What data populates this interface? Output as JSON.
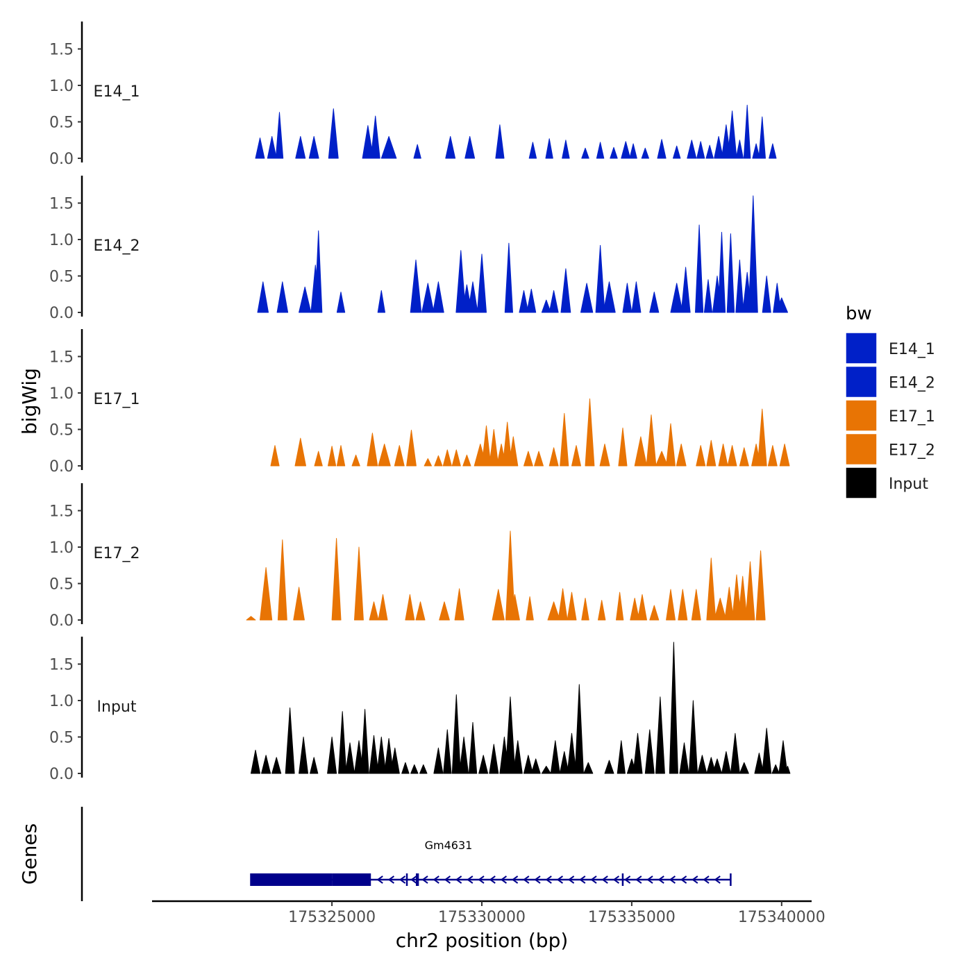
{
  "chart_data": {
    "type": "area",
    "y_axis_title": "bigWig",
    "x_axis_title": "chr2 position (bp)",
    "xlim": [
      175319000,
      175341000
    ],
    "ylim": [
      0,
      1.85
    ],
    "y_ticks": [
      0.0,
      0.5,
      1.0,
      1.5
    ],
    "y_tick_labels": [
      "0.0",
      "0.5",
      "1.0",
      "1.5"
    ],
    "x_ticks": [
      175325000,
      175330000,
      175335000,
      175340000
    ],
    "x_tick_labels": [
      "175325000",
      "175330000",
      "175335000",
      "175340000"
    ],
    "legend_title": "bw",
    "legend": [
      {
        "label": "E14_1",
        "color": "#0020c8"
      },
      {
        "label": "E14_2",
        "color": "#0020c8"
      },
      {
        "label": "E17_1",
        "color": "#e87404"
      },
      {
        "label": "E17_2",
        "color": "#e87404"
      },
      {
        "label": "Input",
        "color": "#000000"
      }
    ],
    "series": [
      {
        "name": "E14_1",
        "color": "#0020c8",
        "peaks": [
          [
            175322600,
            0.28,
            150
          ],
          [
            175323000,
            0.3,
            150
          ],
          [
            175323250,
            0.63,
            120
          ],
          [
            175323950,
            0.3,
            160
          ],
          [
            175324400,
            0.3,
            160
          ],
          [
            175325050,
            0.68,
            160
          ],
          [
            175326200,
            0.45,
            180
          ],
          [
            175326450,
            0.58,
            150
          ],
          [
            175326900,
            0.3,
            250
          ],
          [
            175327850,
            0.19,
            120
          ],
          [
            175328950,
            0.3,
            160
          ],
          [
            175329600,
            0.3,
            160
          ],
          [
            175330600,
            0.46,
            140
          ],
          [
            175331700,
            0.22,
            120
          ],
          [
            175332250,
            0.27,
            120
          ],
          [
            175332800,
            0.25,
            120
          ],
          [
            175333450,
            0.14,
            120
          ],
          [
            175333950,
            0.22,
            120
          ],
          [
            175334400,
            0.15,
            120
          ],
          [
            175334800,
            0.23,
            150
          ],
          [
            175335050,
            0.2,
            120
          ],
          [
            175335450,
            0.14,
            120
          ],
          [
            175336000,
            0.26,
            140
          ],
          [
            175336500,
            0.17,
            120
          ],
          [
            175337000,
            0.25,
            150
          ],
          [
            175337300,
            0.23,
            130
          ],
          [
            175337600,
            0.18,
            120
          ],
          [
            175337900,
            0.3,
            150
          ],
          [
            175338150,
            0.46,
            150
          ],
          [
            175338350,
            0.65,
            150
          ],
          [
            175338600,
            0.25,
            120
          ],
          [
            175338850,
            0.73,
            110
          ],
          [
            175339150,
            0.2,
            120
          ],
          [
            175339350,
            0.57,
            110
          ],
          [
            175339700,
            0.2,
            120
          ]
        ]
      },
      {
        "name": "E14_2",
        "color": "#0020c8",
        "peaks": [
          [
            175322700,
            0.42,
            180
          ],
          [
            175323350,
            0.42,
            180
          ],
          [
            175324100,
            0.35,
            200
          ],
          [
            175324450,
            0.65,
            150
          ],
          [
            175324550,
            1.12,
            120
          ],
          [
            175325300,
            0.28,
            130
          ],
          [
            175326650,
            0.3,
            120
          ],
          [
            175327800,
            0.72,
            180
          ],
          [
            175328200,
            0.4,
            200
          ],
          [
            175328550,
            0.42,
            180
          ],
          [
            175329300,
            0.85,
            160
          ],
          [
            175329500,
            0.38,
            160
          ],
          [
            175329700,
            0.42,
            160
          ],
          [
            175330000,
            0.8,
            150
          ],
          [
            175330900,
            0.95,
            130
          ],
          [
            175331400,
            0.3,
            150
          ],
          [
            175331650,
            0.32,
            150
          ],
          [
            175332150,
            0.17,
            150
          ],
          [
            175332400,
            0.3,
            150
          ],
          [
            175332800,
            0.6,
            160
          ],
          [
            175333500,
            0.4,
            200
          ],
          [
            175333950,
            0.92,
            150
          ],
          [
            175334250,
            0.42,
            200
          ],
          [
            175334850,
            0.4,
            150
          ],
          [
            175335150,
            0.42,
            150
          ],
          [
            175335750,
            0.28,
            150
          ],
          [
            175336500,
            0.4,
            200
          ],
          [
            175336800,
            0.62,
            150
          ],
          [
            175337250,
            1.2,
            130
          ],
          [
            175337550,
            0.45,
            130
          ],
          [
            175337850,
            0.5,
            150
          ],
          [
            175338000,
            1.1,
            120
          ],
          [
            175338300,
            1.08,
            120
          ],
          [
            175338600,
            0.72,
            130
          ],
          [
            175338850,
            0.55,
            150
          ],
          [
            175339050,
            1.6,
            150
          ],
          [
            175339500,
            0.5,
            140
          ],
          [
            175339850,
            0.4,
            130
          ],
          [
            175340000,
            0.2,
            200
          ]
        ]
      },
      {
        "name": "E17_1",
        "color": "#e87404",
        "peaks": [
          [
            175323100,
            0.28,
            140
          ],
          [
            175323950,
            0.38,
            180
          ],
          [
            175324550,
            0.2,
            130
          ],
          [
            175325000,
            0.27,
            130
          ],
          [
            175325300,
            0.28,
            130
          ],
          [
            175325800,
            0.15,
            130
          ],
          [
            175326350,
            0.45,
            170
          ],
          [
            175326750,
            0.3,
            200
          ],
          [
            175327250,
            0.28,
            160
          ],
          [
            175327650,
            0.49,
            160
          ],
          [
            175328200,
            0.1,
            120
          ],
          [
            175328550,
            0.14,
            130
          ],
          [
            175328850,
            0.22,
            140
          ],
          [
            175329150,
            0.22,
            140
          ],
          [
            175329500,
            0.15,
            130
          ],
          [
            175329950,
            0.3,
            200
          ],
          [
            175330150,
            0.55,
            150
          ],
          [
            175330400,
            0.5,
            150
          ],
          [
            175330650,
            0.3,
            150
          ],
          [
            175330850,
            0.6,
            150
          ],
          [
            175331050,
            0.4,
            150
          ],
          [
            175331550,
            0.2,
            150
          ],
          [
            175331900,
            0.2,
            150
          ],
          [
            175332400,
            0.25,
            150
          ],
          [
            175332750,
            0.72,
            140
          ],
          [
            175333150,
            0.28,
            150
          ],
          [
            175333600,
            0.92,
            150
          ],
          [
            175334100,
            0.3,
            160
          ],
          [
            175334700,
            0.52,
            140
          ],
          [
            175335300,
            0.4,
            200
          ],
          [
            175335650,
            0.7,
            160
          ],
          [
            175336000,
            0.2,
            200
          ],
          [
            175336300,
            0.58,
            150
          ],
          [
            175336650,
            0.3,
            160
          ],
          [
            175337300,
            0.28,
            150
          ],
          [
            175337650,
            0.35,
            150
          ],
          [
            175338050,
            0.3,
            150
          ],
          [
            175338350,
            0.28,
            150
          ],
          [
            175338750,
            0.25,
            150
          ],
          [
            175339150,
            0.3,
            150
          ],
          [
            175339350,
            0.78,
            150
          ],
          [
            175339700,
            0.28,
            150
          ],
          [
            175340100,
            0.3,
            160
          ]
        ]
      },
      {
        "name": "E17_2",
        "color": "#e87404",
        "peaks": [
          [
            175322300,
            0.05,
            150
          ],
          [
            175322800,
            0.72,
            200
          ],
          [
            175323350,
            1.1,
            150
          ],
          [
            175323900,
            0.45,
            180
          ],
          [
            175325150,
            1.12,
            150
          ],
          [
            175325900,
            1.0,
            150
          ],
          [
            175326400,
            0.25,
            150
          ],
          [
            175326700,
            0.35,
            150
          ],
          [
            175327600,
            0.35,
            150
          ],
          [
            175327950,
            0.25,
            150
          ],
          [
            175328750,
            0.25,
            170
          ],
          [
            175329250,
            0.43,
            150
          ],
          [
            175330550,
            0.42,
            200
          ],
          [
            175330950,
            1.22,
            150
          ],
          [
            175331100,
            0.35,
            160
          ],
          [
            175331600,
            0.32,
            120
          ],
          [
            175332400,
            0.25,
            200
          ],
          [
            175332700,
            0.43,
            150
          ],
          [
            175333000,
            0.38,
            150
          ],
          [
            175333450,
            0.3,
            120
          ],
          [
            175334000,
            0.27,
            120
          ],
          [
            175334600,
            0.38,
            120
          ],
          [
            175335100,
            0.3,
            150
          ],
          [
            175335350,
            0.35,
            150
          ],
          [
            175335750,
            0.2,
            150
          ],
          [
            175336300,
            0.42,
            150
          ],
          [
            175336700,
            0.42,
            150
          ],
          [
            175337150,
            0.42,
            150
          ],
          [
            175337650,
            0.85,
            150
          ],
          [
            175337950,
            0.3,
            200
          ],
          [
            175338250,
            0.45,
            150
          ],
          [
            175338500,
            0.62,
            150
          ],
          [
            175338700,
            0.6,
            150
          ],
          [
            175338950,
            0.8,
            150
          ],
          [
            175339300,
            0.95,
            150
          ]
        ]
      },
      {
        "name": "Input",
        "color": "#000000",
        "peaks": [
          [
            175322450,
            0.32,
            150
          ],
          [
            175322800,
            0.25,
            150
          ],
          [
            175323150,
            0.22,
            150
          ],
          [
            175323600,
            0.9,
            150
          ],
          [
            175324050,
            0.5,
            150
          ],
          [
            175324400,
            0.22,
            130
          ],
          [
            175325000,
            0.5,
            150
          ],
          [
            175325350,
            0.85,
            130
          ],
          [
            175325600,
            0.42,
            150
          ],
          [
            175325900,
            0.45,
            150
          ],
          [
            175326100,
            0.88,
            130
          ],
          [
            175326400,
            0.52,
            150
          ],
          [
            175326650,
            0.5,
            150
          ],
          [
            175326900,
            0.48,
            150
          ],
          [
            175327100,
            0.35,
            150
          ],
          [
            175327450,
            0.15,
            120
          ],
          [
            175327750,
            0.12,
            120
          ],
          [
            175328050,
            0.12,
            120
          ],
          [
            175328550,
            0.35,
            150
          ],
          [
            175328850,
            0.6,
            130
          ],
          [
            175329150,
            1.08,
            140
          ],
          [
            175329400,
            0.5,
            150
          ],
          [
            175329700,
            0.7,
            130
          ],
          [
            175330050,
            0.25,
            150
          ],
          [
            175330400,
            0.4,
            150
          ],
          [
            175330750,
            0.5,
            150
          ],
          [
            175330950,
            1.05,
            160
          ],
          [
            175331200,
            0.45,
            150
          ],
          [
            175331550,
            0.25,
            150
          ],
          [
            175331800,
            0.2,
            150
          ],
          [
            175332150,
            0.1,
            150
          ],
          [
            175332450,
            0.45,
            150
          ],
          [
            175332750,
            0.3,
            150
          ],
          [
            175333000,
            0.55,
            150
          ],
          [
            175333250,
            1.22,
            140
          ],
          [
            175333550,
            0.15,
            150
          ],
          [
            175334250,
            0.18,
            150
          ],
          [
            175334650,
            0.45,
            130
          ],
          [
            175335000,
            0.2,
            150
          ],
          [
            175335200,
            0.55,
            150
          ],
          [
            175335600,
            0.6,
            150
          ],
          [
            175335950,
            1.05,
            150
          ],
          [
            175336400,
            1.8,
            140
          ],
          [
            175336750,
            0.42,
            150
          ],
          [
            175337050,
            1.0,
            140
          ],
          [
            175337350,
            0.25,
            150
          ],
          [
            175337650,
            0.22,
            150
          ],
          [
            175337850,
            0.2,
            150
          ],
          [
            175338150,
            0.3,
            150
          ],
          [
            175338450,
            0.55,
            150
          ],
          [
            175338750,
            0.15,
            150
          ],
          [
            175339250,
            0.28,
            150
          ],
          [
            175339500,
            0.62,
            150
          ],
          [
            175339800,
            0.12,
            120
          ],
          [
            175340050,
            0.45,
            140
          ],
          [
            175340200,
            0.1,
            80
          ]
        ]
      }
    ],
    "genes_track": {
      "label": "Genes",
      "gene_name": "Gm4631",
      "strand": "-",
      "color": "#00008b",
      "start": 175322300,
      "end": 175338300,
      "thick_blocks": [
        [
          175322300,
          175325000
        ],
        [
          175325000,
          175326300
        ],
        [
          175327800,
          175327900
        ]
      ],
      "exon_marks": [
        175327500,
        175334700
      ]
    }
  }
}
